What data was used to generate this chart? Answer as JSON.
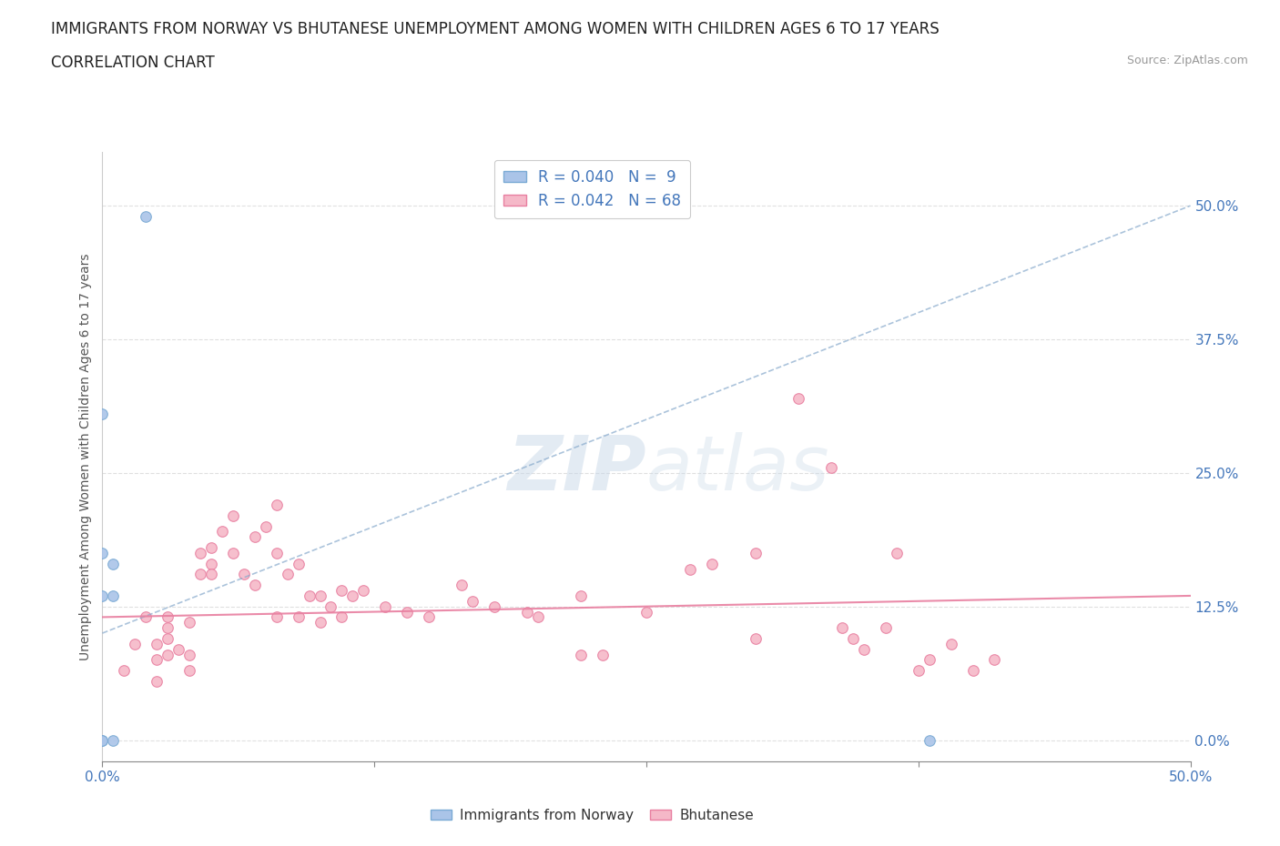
{
  "title": "IMMIGRANTS FROM NORWAY VS BHUTANESE UNEMPLOYMENT AMONG WOMEN WITH CHILDREN AGES 6 TO 17 YEARS",
  "subtitle": "CORRELATION CHART",
  "source": "Source: ZipAtlas.com",
  "ylabel": "Unemployment Among Women with Children Ages 6 to 17 years",
  "xlim": [
    0,
    0.5
  ],
  "ylim": [
    -0.02,
    0.55
  ],
  "yticks": [
    0.0,
    0.125,
    0.25,
    0.375,
    0.5
  ],
  "ytick_labels": [
    "0.0%",
    "12.5%",
    "25.0%",
    "37.5%",
    "50.0%"
  ],
  "xticks": [
    0.0,
    0.125,
    0.25,
    0.375,
    0.5
  ],
  "xtick_labels": [
    "0.0%",
    "",
    "",
    "",
    "50.0%"
  ],
  "norway_color": "#aac4e8",
  "norway_edge": "#7aaad4",
  "bhutan_color": "#f5b8c8",
  "bhutan_edge": "#e87fa0",
  "norway_R": 0.04,
  "norway_N": 9,
  "bhutan_R": 0.042,
  "bhutan_N": 68,
  "norway_line_color": "#88aacc",
  "bhutan_line_color": "#e87fa0",
  "legend_text_color": "#4477bb",
  "norway_line_x": [
    0.0,
    0.5
  ],
  "norway_line_y": [
    0.1,
    0.5
  ],
  "bhutan_line_x": [
    0.0,
    0.5
  ],
  "bhutan_line_y": [
    0.115,
    0.135
  ],
  "norway_x": [
    0.0,
    0.0,
    0.0,
    0.0,
    0.0,
    0.005,
    0.005,
    0.005,
    0.38
  ],
  "norway_y": [
    0.0,
    0.0,
    0.135,
    0.175,
    0.305,
    0.135,
    0.165,
    0.0,
    0.0
  ],
  "bhutan_x": [
    0.01,
    0.015,
    0.02,
    0.025,
    0.025,
    0.025,
    0.03,
    0.03,
    0.03,
    0.03,
    0.035,
    0.04,
    0.04,
    0.04,
    0.045,
    0.045,
    0.05,
    0.05,
    0.05,
    0.055,
    0.06,
    0.06,
    0.065,
    0.07,
    0.07,
    0.075,
    0.08,
    0.08,
    0.08,
    0.085,
    0.09,
    0.09,
    0.095,
    0.1,
    0.1,
    0.105,
    0.11,
    0.11,
    0.115,
    0.12,
    0.13,
    0.14,
    0.15,
    0.165,
    0.17,
    0.18,
    0.195,
    0.2,
    0.22,
    0.22,
    0.23,
    0.25,
    0.27,
    0.28,
    0.3,
    0.3,
    0.32,
    0.335,
    0.34,
    0.345,
    0.35,
    0.36,
    0.365,
    0.375,
    0.38,
    0.39,
    0.4,
    0.41
  ],
  "bhutan_y": [
    0.065,
    0.09,
    0.115,
    0.075,
    0.09,
    0.055,
    0.115,
    0.095,
    0.105,
    0.08,
    0.085,
    0.11,
    0.08,
    0.065,
    0.175,
    0.155,
    0.18,
    0.165,
    0.155,
    0.195,
    0.21,
    0.175,
    0.155,
    0.19,
    0.145,
    0.2,
    0.22,
    0.175,
    0.115,
    0.155,
    0.165,
    0.115,
    0.135,
    0.135,
    0.11,
    0.125,
    0.115,
    0.14,
    0.135,
    0.14,
    0.125,
    0.12,
    0.115,
    0.145,
    0.13,
    0.125,
    0.12,
    0.115,
    0.135,
    0.08,
    0.08,
    0.12,
    0.16,
    0.165,
    0.095,
    0.175,
    0.32,
    0.255,
    0.105,
    0.095,
    0.085,
    0.105,
    0.175,
    0.065,
    0.075,
    0.09,
    0.065,
    0.075
  ],
  "norway_outlier_x": [
    0.02
  ],
  "norway_outlier_y": [
    0.49
  ],
  "background_color": "#ffffff",
  "grid_color": "#e0e0e0"
}
